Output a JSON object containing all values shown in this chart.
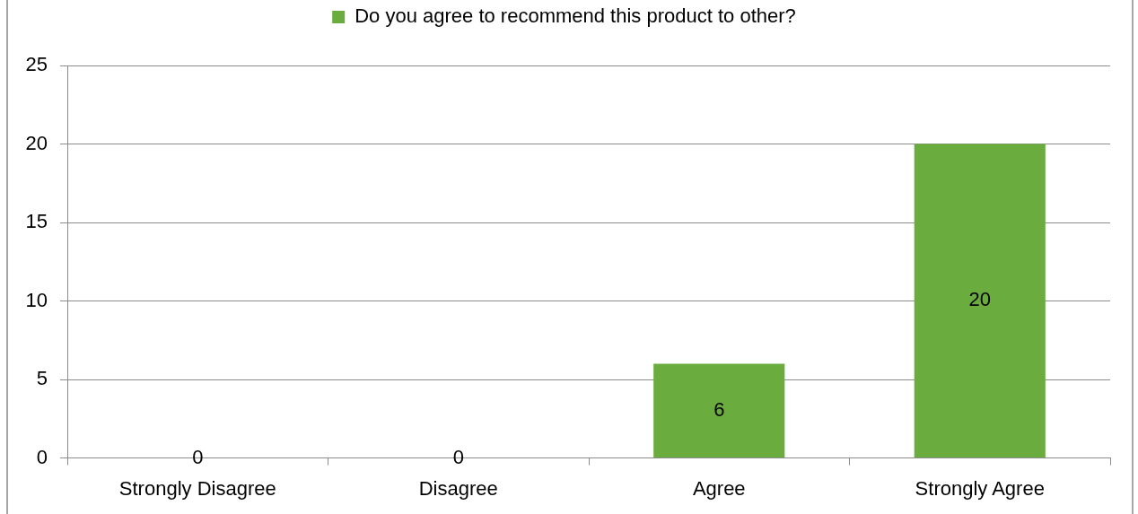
{
  "chart_data": {
    "type": "bar",
    "categories": [
      "Strongly Disagree",
      "Disagree",
      "Agree",
      "Strongly Agree"
    ],
    "series": [
      {
        "name": "Do you agree to recommend this product to other?",
        "color": "#6aac3e",
        "values": [
          0,
          0,
          6,
          20
        ]
      }
    ],
    "ylim": [
      0,
      25
    ],
    "yticks": [
      0,
      5,
      10,
      15,
      20,
      25
    ],
    "grid": "y",
    "legend": "top",
    "data_labels": true
  }
}
